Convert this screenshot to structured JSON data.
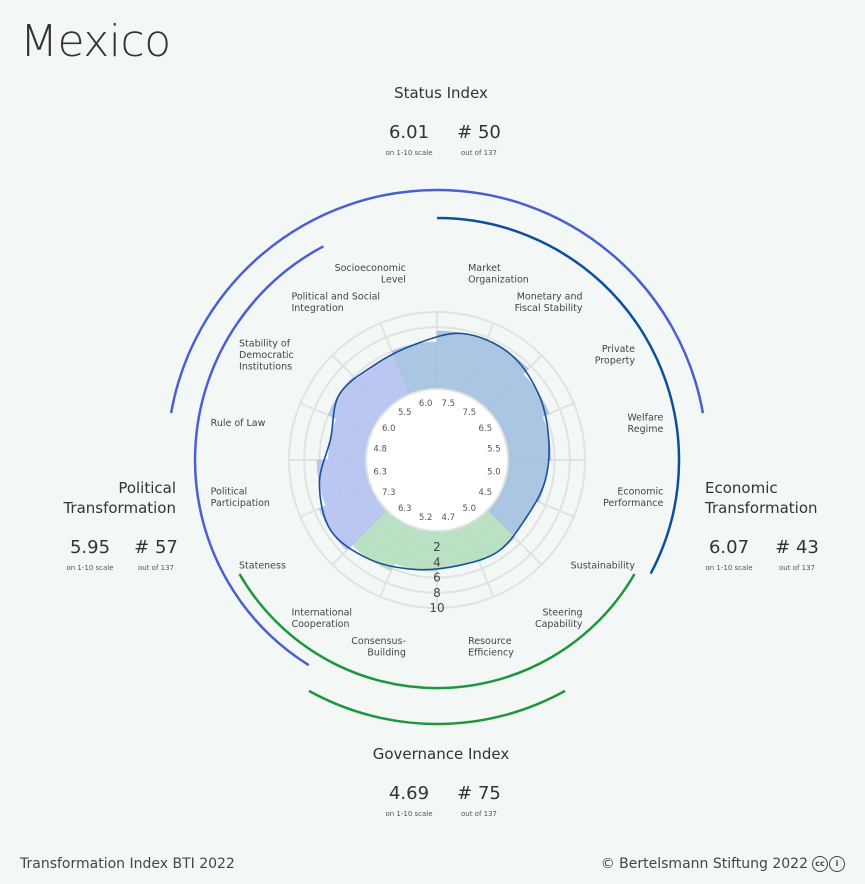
{
  "country": "Mexico",
  "footer": {
    "left": "Transformation Index BTI 2022",
    "right": "© Bertelsmann Stiftung 2022"
  },
  "colors": {
    "status": "#4a5fd1",
    "political": "#4a5fd1",
    "economic": "#0b4f9e",
    "governance": "#1e9640",
    "political_fill": "#b8c5f0",
    "economic_fill": "#a8c4e2",
    "governance_fill": "#b8e0c1"
  },
  "chart_data": {
    "type": "radar",
    "scale": [
      1,
      10
    ],
    "indices": [
      {
        "key": "status",
        "title": "Status Index",
        "score": "6.01",
        "score_sub": "on 1-10 scale",
        "rank": "# 50",
        "rank_sub": "out of 137"
      },
      {
        "key": "political",
        "title": "Political Transformation",
        "score": "5.95",
        "score_sub": "on 1-10 scale",
        "rank": "# 57",
        "rank_sub": "out of 137"
      },
      {
        "key": "economic",
        "title": "Economic Transformation",
        "score": "6.07",
        "score_sub": "on 1-10 scale",
        "rank": "# 43",
        "rank_sub": "out of 137"
      },
      {
        "key": "governance",
        "title": "Governance Index",
        "score": "4.69",
        "score_sub": "on 1-10 scale",
        "rank": "# 75",
        "rank_sub": "out of 137"
      }
    ],
    "criteria": [
      {
        "label": [
          "Market",
          "Organization"
        ],
        "value": 7.5,
        "group": "economic"
      },
      {
        "label": [
          "Monetary and",
          "Fiscal Stability"
        ],
        "value": 7.5,
        "group": "economic"
      },
      {
        "label": [
          "Private",
          "Property"
        ],
        "value": 6.5,
        "group": "economic"
      },
      {
        "label": [
          "Welfare",
          "Regime"
        ],
        "value": 5.5,
        "group": "economic"
      },
      {
        "label": [
          "Economic",
          "Performance"
        ],
        "value": 5.0,
        "group": "economic"
      },
      {
        "label": [
          "Sustainability"
        ],
        "value": 4.5,
        "group": "economic"
      },
      {
        "label": [
          "Steering",
          "Capability"
        ],
        "value": 5.0,
        "group": "governance"
      },
      {
        "label": [
          "Resource",
          "Efficiency"
        ],
        "value": 4.7,
        "group": "governance"
      },
      {
        "label": [
          "Consensus-",
          "Building"
        ],
        "value": 5.2,
        "group": "governance"
      },
      {
        "label": [
          "International",
          "Cooperation"
        ],
        "value": 6.3,
        "group": "governance"
      },
      {
        "label": [
          "Stateness"
        ],
        "value": 7.3,
        "group": "political"
      },
      {
        "label": [
          "Political",
          "Participation"
        ],
        "value": 6.3,
        "group": "political"
      },
      {
        "label": [
          "Rule of Law"
        ],
        "value": 4.8,
        "group": "political"
      },
      {
        "label": [
          "Stability of",
          "Democratic",
          "Institutions"
        ],
        "value": 6.0,
        "group": "political"
      },
      {
        "label": [
          "Political and Social",
          "Integration"
        ],
        "value": 5.5,
        "group": "political"
      },
      {
        "label": [
          "Socioeconomic",
          "Level"
        ],
        "value": 6.0,
        "group": "economic"
      }
    ],
    "scale_labels": [
      "2",
      "4",
      "6",
      "8",
      "10"
    ]
  }
}
